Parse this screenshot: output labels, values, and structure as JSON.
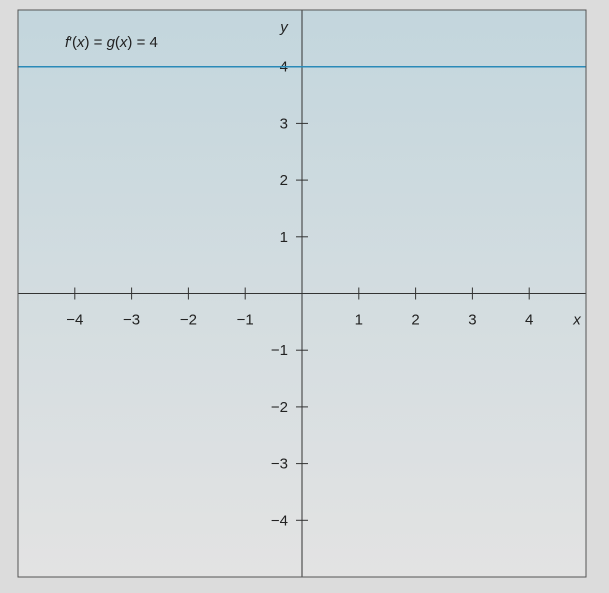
{
  "chart_data": {
    "type": "line",
    "title": "",
    "xlabel": "x",
    "ylabel": "y",
    "xlim": [
      -5,
      5
    ],
    "ylim": [
      -5,
      5
    ],
    "grid": false,
    "x_ticks": [
      -4,
      -3,
      -2,
      -1,
      1,
      2,
      3,
      4
    ],
    "y_ticks": [
      -4,
      -3,
      -2,
      -1,
      1,
      2,
      3,
      4
    ],
    "series": [
      {
        "name": "f′(x) = g(x) = 4",
        "x": [
          -5,
          5
        ],
        "y": [
          4,
          4
        ],
        "color": "#2a8ab8"
      }
    ],
    "annotation": {
      "parts": [
        "f",
        "′(",
        "x",
        ") = ",
        "g",
        "(",
        "x",
        ") = 4"
      ]
    },
    "colors": {
      "plot_top": "#c3d6dd",
      "plot_bottom": "#e3e3e3",
      "axis": "#333333",
      "frame": "#555555"
    }
  }
}
